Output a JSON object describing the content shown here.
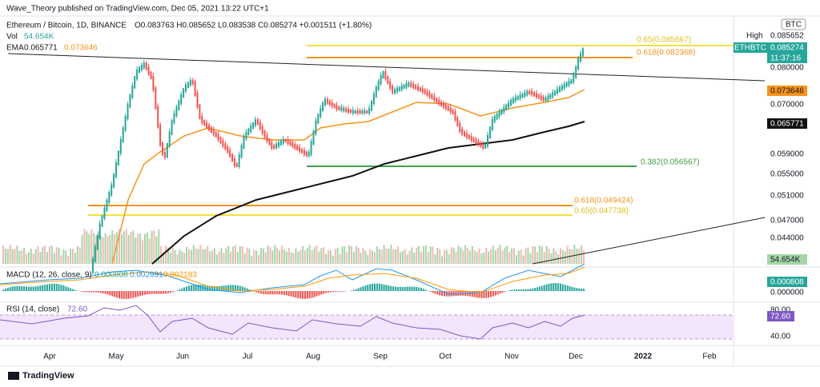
{
  "header": {
    "publisher": "Wave_Theory published on TradingView.com, Dec 05, 2021 13:22 UTC+1"
  },
  "legend": {
    "symbol": "Ethereum / Bitcoin, 1D, BINANCE",
    "ohlc": "O0.083763 H0.085652 L0.083538 C0.085274 +0.001511 (+1.80%)",
    "vol_name": "Vol",
    "vol_value": "54.654K",
    "ema_name": "EMA",
    "ema_black": "0.065771",
    "ema_orange": "0.073646"
  },
  "price_axis": {
    "currency": "BTC",
    "high_label": "High",
    "high_value": "0.085652",
    "symbol_badge": "ETHBTC",
    "last_price": "0.085274",
    "countdown": "11:37:16",
    "ticks": [
      "0.080000",
      "0.070000",
      "0.059000",
      "0.055000",
      "0.051000",
      "0.047000",
      "0.044000"
    ],
    "ema_orange_badge": "0.073646",
    "ema_black_badge": "0.065771",
    "volume_badge": "54.654K"
  },
  "fib_levels": [
    "0.65(0.085867)",
    "0.618(0.082368)",
    "0.382(0.056567)",
    "0.618(0.049424)",
    "0.65(0.047738)"
  ],
  "macd": {
    "title": "MACD (12, 26, close, 9)",
    "hist": "0.000808",
    "macd": "0.002991",
    "signal": "0.002183",
    "axis_badge": "0.000808",
    "axis_zero": "0.000000"
  },
  "rsi": {
    "title": "RSI (14, close)",
    "value": "72.60",
    "axis_top": "80.00",
    "axis_badge": "72.60",
    "axis_bottom": "40.00"
  },
  "time_axis": [
    "Apr",
    "May",
    "Jun",
    "Jul",
    "Aug",
    "Sep",
    "Oct",
    "Nov",
    "Dec",
    "2022",
    "Feb"
  ],
  "footer": {
    "brand": "TradingView"
  }
}
